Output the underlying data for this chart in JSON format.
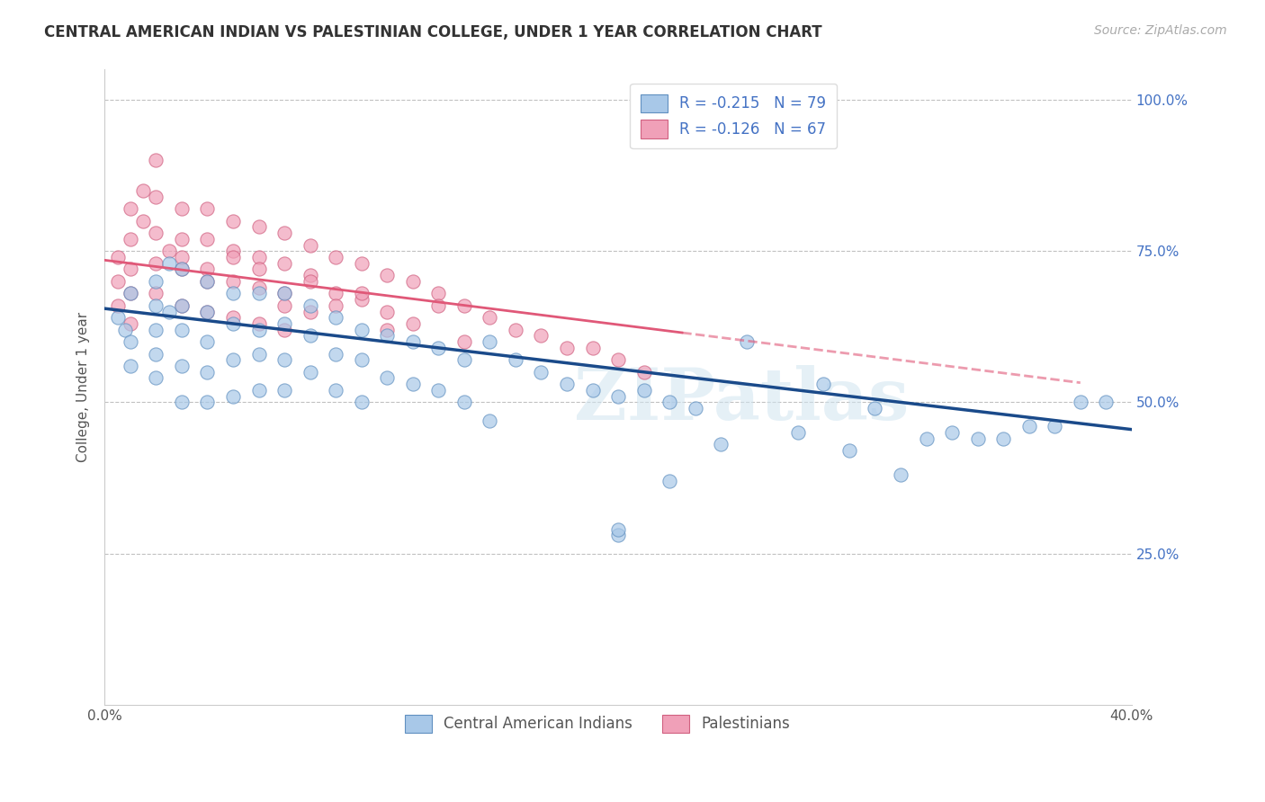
{
  "title": "CENTRAL AMERICAN INDIAN VS PALESTINIAN COLLEGE, UNDER 1 YEAR CORRELATION CHART",
  "source": "Source: ZipAtlas.com",
  "ylabel": "College, Under 1 year",
  "legend_labels_bottom": [
    "Central American Indians",
    "Palestinians"
  ],
  "blue_color": "#a8c8e8",
  "blue_edge_color": "#6090c0",
  "pink_color": "#f0a0b8",
  "pink_edge_color": "#d06080",
  "blue_line_color": "#1a4a8a",
  "pink_line_color": "#e05878",
  "watermark": "ZIPatlas",
  "blue_R": -0.215,
  "pink_R": -0.126,
  "blue_N": 79,
  "pink_N": 67,
  "xmin": 0.0,
  "xmax": 0.4,
  "ymin": 0.0,
  "ymax": 1.05,
  "blue_line_x0": 0.0,
  "blue_line_y0": 0.655,
  "blue_line_x1": 0.4,
  "blue_line_y1": 0.455,
  "pink_line_x0": 0.0,
  "pink_line_y0": 0.735,
  "pink_line_x1": 0.225,
  "pink_line_y1": 0.615,
  "blue_scatter_x": [
    0.005,
    0.008,
    0.01,
    0.01,
    0.01,
    0.02,
    0.02,
    0.02,
    0.02,
    0.02,
    0.025,
    0.025,
    0.03,
    0.03,
    0.03,
    0.03,
    0.03,
    0.04,
    0.04,
    0.04,
    0.04,
    0.04,
    0.05,
    0.05,
    0.05,
    0.05,
    0.06,
    0.06,
    0.06,
    0.06,
    0.07,
    0.07,
    0.07,
    0.07,
    0.08,
    0.08,
    0.08,
    0.09,
    0.09,
    0.09,
    0.1,
    0.1,
    0.1,
    0.11,
    0.11,
    0.12,
    0.12,
    0.13,
    0.13,
    0.14,
    0.14,
    0.15,
    0.15,
    0.16,
    0.17,
    0.18,
    0.19,
    0.2,
    0.21,
    0.22,
    0.23,
    0.25,
    0.27,
    0.28,
    0.3,
    0.32,
    0.34,
    0.36,
    0.38,
    0.22,
    0.2,
    0.24,
    0.29,
    0.31,
    0.33,
    0.35,
    0.37,
    0.39,
    0.2
  ],
  "blue_scatter_y": [
    0.64,
    0.62,
    0.68,
    0.6,
    0.56,
    0.7,
    0.66,
    0.62,
    0.58,
    0.54,
    0.73,
    0.65,
    0.72,
    0.66,
    0.62,
    0.56,
    0.5,
    0.7,
    0.65,
    0.6,
    0.55,
    0.5,
    0.68,
    0.63,
    0.57,
    0.51,
    0.68,
    0.62,
    0.58,
    0.52,
    0.68,
    0.63,
    0.57,
    0.52,
    0.66,
    0.61,
    0.55,
    0.64,
    0.58,
    0.52,
    0.62,
    0.57,
    0.5,
    0.61,
    0.54,
    0.6,
    0.53,
    0.59,
    0.52,
    0.57,
    0.5,
    0.6,
    0.47,
    0.57,
    0.55,
    0.53,
    0.52,
    0.51,
    0.52,
    0.5,
    0.49,
    0.6,
    0.45,
    0.53,
    0.49,
    0.44,
    0.44,
    0.46,
    0.5,
    0.37,
    0.28,
    0.43,
    0.42,
    0.38,
    0.45,
    0.44,
    0.46,
    0.5,
    0.29
  ],
  "pink_scatter_x": [
    0.005,
    0.005,
    0.005,
    0.01,
    0.01,
    0.01,
    0.01,
    0.01,
    0.015,
    0.015,
    0.02,
    0.02,
    0.02,
    0.02,
    0.02,
    0.025,
    0.03,
    0.03,
    0.03,
    0.03,
    0.04,
    0.04,
    0.04,
    0.04,
    0.05,
    0.05,
    0.05,
    0.05,
    0.06,
    0.06,
    0.06,
    0.06,
    0.07,
    0.07,
    0.07,
    0.07,
    0.08,
    0.08,
    0.08,
    0.09,
    0.09,
    0.1,
    0.1,
    0.11,
    0.11,
    0.12,
    0.12,
    0.13,
    0.14,
    0.15,
    0.16,
    0.17,
    0.18,
    0.19,
    0.2,
    0.21,
    0.14,
    0.09,
    0.06,
    0.04,
    0.07,
    0.03,
    0.11,
    0.13,
    0.08,
    0.05,
    0.1
  ],
  "pink_scatter_y": [
    0.74,
    0.7,
    0.66,
    0.82,
    0.77,
    0.72,
    0.68,
    0.63,
    0.85,
    0.8,
    0.9,
    0.84,
    0.78,
    0.73,
    0.68,
    0.75,
    0.82,
    0.77,
    0.72,
    0.66,
    0.82,
    0.77,
    0.72,
    0.65,
    0.8,
    0.75,
    0.7,
    0.64,
    0.79,
    0.74,
    0.69,
    0.63,
    0.78,
    0.73,
    0.68,
    0.62,
    0.76,
    0.71,
    0.65,
    0.74,
    0.68,
    0.73,
    0.67,
    0.71,
    0.65,
    0.7,
    0.63,
    0.68,
    0.66,
    0.64,
    0.62,
    0.61,
    0.59,
    0.59,
    0.57,
    0.55,
    0.6,
    0.66,
    0.72,
    0.7,
    0.66,
    0.74,
    0.62,
    0.66,
    0.7,
    0.74,
    0.68
  ]
}
